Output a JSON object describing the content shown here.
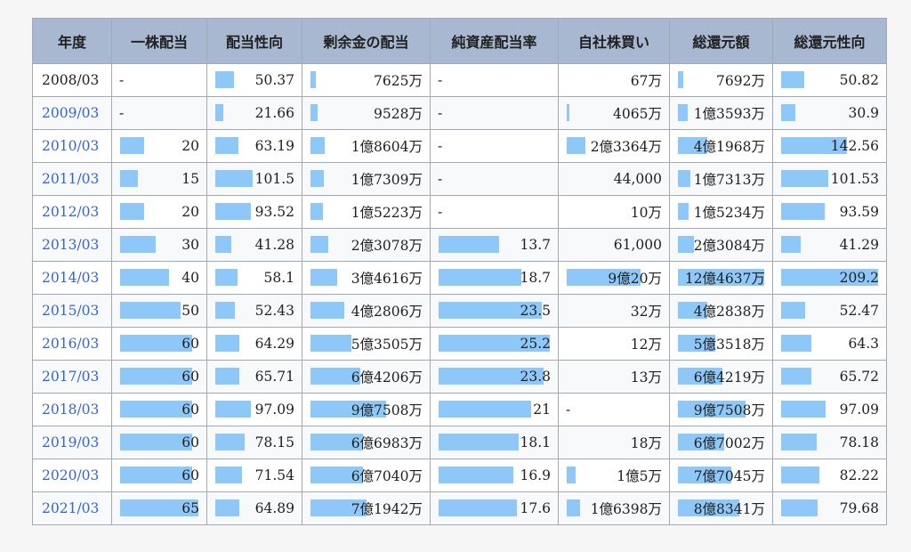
{
  "headers": [
    "年度",
    "一株配当",
    "配当性向",
    "剰余金の配当",
    "純資産配当率",
    "自社株買い",
    "総還元額",
    "総還元性向"
  ],
  "bar_color": "#8ec8f8",
  "header_color": "#a9b8d1",
  "link_color": "#3366cc",
  "rows": [
    {
      "year": "2008/03",
      "link": false,
      "cells": [
        {
          "text": "-",
          "bar": null
        },
        {
          "text": "50.37",
          "bar": 0.24
        },
        {
          "text": "7625万",
          "bar": 0.05
        },
        {
          "text": "-",
          "bar": null
        },
        {
          "text": "67万",
          "bar": null
        },
        {
          "text": "7692万",
          "bar": 0.06
        },
        {
          "text": "50.82",
          "bar": 0.24
        }
      ]
    },
    {
      "year": "2009/03",
      "link": true,
      "cells": [
        {
          "text": "-",
          "bar": null
        },
        {
          "text": "21.66",
          "bar": 0.1
        },
        {
          "text": "9528万",
          "bar": 0.06
        },
        {
          "text": "-",
          "bar": null
        },
        {
          "text": "4065万",
          "bar": 0.02
        },
        {
          "text": "1億3593万",
          "bar": 0.11
        },
        {
          "text": "30.9",
          "bar": 0.15
        }
      ]
    },
    {
      "year": "2010/03",
      "link": true,
      "cells": [
        {
          "text": "20",
          "bar": 0.31
        },
        {
          "text": "63.19",
          "bar": 0.3
        },
        {
          "text": "1億8604万",
          "bar": 0.13
        },
        {
          "text": "-",
          "bar": null
        },
        {
          "text": "2億3364万",
          "bar": 0.2
        },
        {
          "text": "4億1968万",
          "bar": 0.34
        },
        {
          "text": "142.56",
          "bar": 0.68
        }
      ]
    },
    {
      "year": "2011/03",
      "link": true,
      "cells": [
        {
          "text": "15",
          "bar": 0.23
        },
        {
          "text": "101.5",
          "bar": 0.48
        },
        {
          "text": "1億7309万",
          "bar": 0.12
        },
        {
          "text": "-",
          "bar": null
        },
        {
          "text": "44,000",
          "bar": null
        },
        {
          "text": "1億7313万",
          "bar": 0.14
        },
        {
          "text": "101.53",
          "bar": 0.49
        }
      ]
    },
    {
      "year": "2012/03",
      "link": true,
      "cells": [
        {
          "text": "20",
          "bar": 0.31
        },
        {
          "text": "93.52",
          "bar": 0.45
        },
        {
          "text": "1億5223万",
          "bar": 0.11
        },
        {
          "text": "-",
          "bar": null
        },
        {
          "text": "10万",
          "bar": null
        },
        {
          "text": "1億5234万",
          "bar": 0.12
        },
        {
          "text": "93.59",
          "bar": 0.45
        }
      ]
    },
    {
      "year": "2013/03",
      "link": true,
      "cells": [
        {
          "text": "30",
          "bar": 0.46
        },
        {
          "text": "41.28",
          "bar": 0.2
        },
        {
          "text": "2億3078万",
          "bar": 0.16
        },
        {
          "text": "13.7",
          "bar": 0.54
        },
        {
          "text": "61,000",
          "bar": null
        },
        {
          "text": "2億3084万",
          "bar": 0.19
        },
        {
          "text": "41.29",
          "bar": 0.2
        }
      ]
    },
    {
      "year": "2014/03",
      "link": true,
      "cells": [
        {
          "text": "40",
          "bar": 0.62
        },
        {
          "text": "58.1",
          "bar": 0.28
        },
        {
          "text": "3億4616万",
          "bar": 0.24
        },
        {
          "text": "18.7",
          "bar": 0.74
        },
        {
          "text": "9億20万",
          "bar": 0.78
        },
        {
          "text": "12億4637万",
          "bar": 1.0
        },
        {
          "text": "209.2",
          "bar": 1.0
        }
      ]
    },
    {
      "year": "2015/03",
      "link": true,
      "cells": [
        {
          "text": "50",
          "bar": 0.77
        },
        {
          "text": "52.43",
          "bar": 0.25
        },
        {
          "text": "4億2806万",
          "bar": 0.3
        },
        {
          "text": "23.5",
          "bar": 0.93
        },
        {
          "text": "32万",
          "bar": null
        },
        {
          "text": "4億2838万",
          "bar": 0.34
        },
        {
          "text": "52.47",
          "bar": 0.25
        }
      ]
    },
    {
      "year": "2016/03",
      "link": true,
      "cells": [
        {
          "text": "60",
          "bar": 0.92
        },
        {
          "text": "64.29",
          "bar": 0.31
        },
        {
          "text": "5億3505万",
          "bar": 0.37
        },
        {
          "text": "25.2",
          "bar": 1.0
        },
        {
          "text": "12万",
          "bar": null
        },
        {
          "text": "5億3518万",
          "bar": 0.43
        },
        {
          "text": "64.3",
          "bar": 0.31
        }
      ]
    },
    {
      "year": "2017/03",
      "link": true,
      "cells": [
        {
          "text": "60",
          "bar": 0.92
        },
        {
          "text": "65.71",
          "bar": 0.31
        },
        {
          "text": "6億4206万",
          "bar": 0.45
        },
        {
          "text": "23.8",
          "bar": 0.94
        },
        {
          "text": "13万",
          "bar": null
        },
        {
          "text": "6億4219万",
          "bar": 0.52
        },
        {
          "text": "65.72",
          "bar": 0.31
        }
      ]
    },
    {
      "year": "2018/03",
      "link": true,
      "cells": [
        {
          "text": "60",
          "bar": 0.92
        },
        {
          "text": "97.09",
          "bar": 0.46
        },
        {
          "text": "9億7508万",
          "bar": 0.68
        },
        {
          "text": "21",
          "bar": 0.83
        },
        {
          "text": "-",
          "bar": null
        },
        {
          "text": "9億7508万",
          "bar": 0.78
        },
        {
          "text": "97.09",
          "bar": 0.46
        }
      ]
    },
    {
      "year": "2019/03",
      "link": true,
      "cells": [
        {
          "text": "60",
          "bar": 0.92
        },
        {
          "text": "78.15",
          "bar": 0.37
        },
        {
          "text": "6億6983万",
          "bar": 0.47
        },
        {
          "text": "18.1",
          "bar": 0.72
        },
        {
          "text": "18万",
          "bar": null
        },
        {
          "text": "6億7002万",
          "bar": 0.54
        },
        {
          "text": "78.18",
          "bar": 0.37
        }
      ]
    },
    {
      "year": "2020/03",
      "link": true,
      "cells": [
        {
          "text": "60",
          "bar": 0.92
        },
        {
          "text": "71.54",
          "bar": 0.34
        },
        {
          "text": "6億7040万",
          "bar": 0.47
        },
        {
          "text": "16.9",
          "bar": 0.67
        },
        {
          "text": "1億5万",
          "bar": 0.09
        },
        {
          "text": "7億7045万",
          "bar": 0.62
        },
        {
          "text": "82.22",
          "bar": 0.39
        }
      ]
    },
    {
      "year": "2021/03",
      "link": true,
      "cells": [
        {
          "text": "65",
          "bar": 1.0
        },
        {
          "text": "64.89",
          "bar": 0.31
        },
        {
          "text": "7億1942万",
          "bar": 0.5
        },
        {
          "text": "17.6",
          "bar": 0.7
        },
        {
          "text": "1億6398万",
          "bar": 0.14
        },
        {
          "text": "8億8341万",
          "bar": 0.71
        },
        {
          "text": "79.68",
          "bar": 0.38
        }
      ]
    }
  ]
}
